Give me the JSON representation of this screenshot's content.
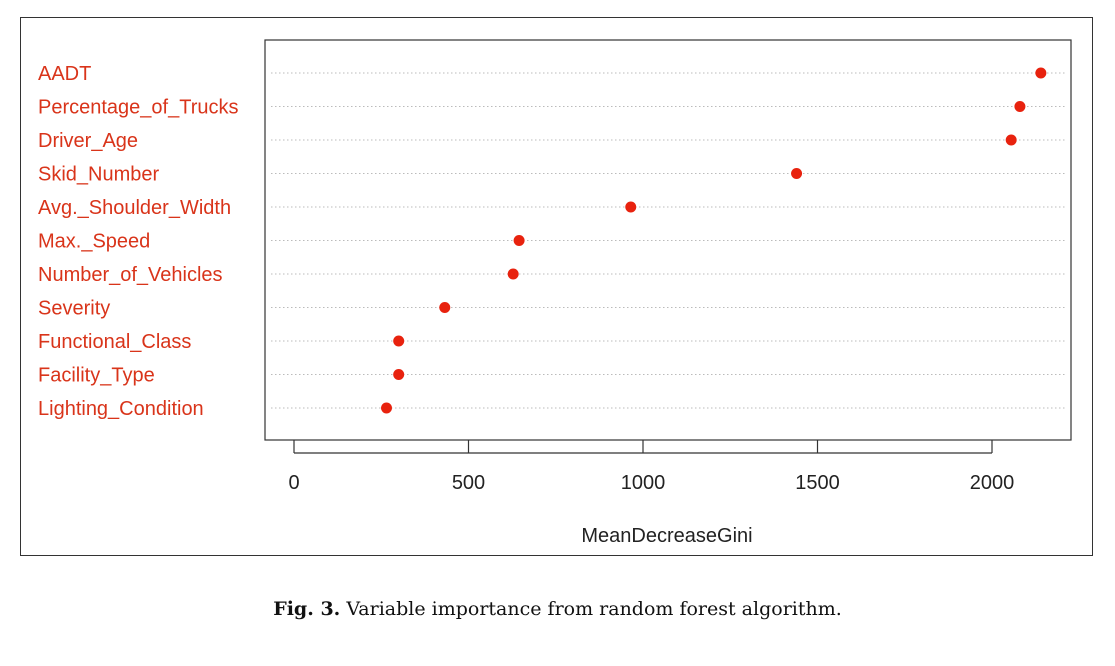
{
  "chart_data": {
    "type": "scatter",
    "subtype": "dotchart",
    "xlabel": "MeanDecreaseGini",
    "xlim": [
      -80,
      2200
    ],
    "xticks": [
      0,
      500,
      1000,
      1500,
      2000
    ],
    "grid": "horizontal dotted lines per category",
    "categories": [
      "AADT",
      "Percentage_of_Trucks",
      "Driver_Age",
      "Skid_Number",
      "Avg._Shoulder_Width",
      "Max._Speed",
      "Number_of_Vehicles",
      "Severity",
      "Functional_Class",
      "Facility_Type",
      "Lighting_Condition"
    ],
    "values": [
      2140,
      2080,
      2055,
      1440,
      965,
      645,
      628,
      432,
      300,
      300,
      265
    ],
    "colors": {
      "label": "#d9341a",
      "point": "#e8220e",
      "axis": "#333333",
      "grid": "#bbbbbb"
    }
  },
  "caption": {
    "label": "Fig. 3.",
    "text": "Variable importance from random forest algorithm."
  }
}
